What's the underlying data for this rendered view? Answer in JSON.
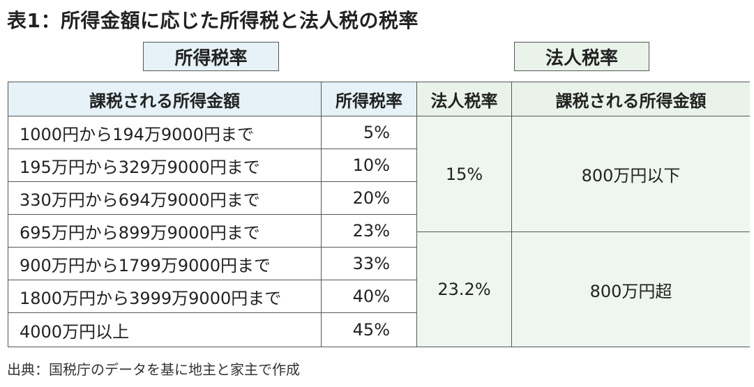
{
  "title": "表1：所得金額に応じた所得税と法人税の税率",
  "labels": {
    "income": "所得税率",
    "corporate": "法人税率"
  },
  "headers": {
    "income_amount": "課税される所得金額",
    "income_rate": "所得税率",
    "corporate_rate": "法人税率",
    "corporate_amount": "課税される所得金額"
  },
  "income_rows": [
    {
      "range": "1000円から194万9000円まで",
      "rate": "5%"
    },
    {
      "range": "195万円から329万9000円まで",
      "rate": "10%"
    },
    {
      "range": "330万円から694万9000円まで",
      "rate": "20%"
    },
    {
      "range": "695万円から899万9000円まで",
      "rate": "23%"
    },
    {
      "range": "900万円から1799万9000円まで",
      "rate": "33%"
    },
    {
      "range": "1800万円から3999万9000円まで",
      "rate": "40%"
    },
    {
      "range": "4000万円以上",
      "rate": "45%"
    }
  ],
  "corporate_rows": [
    {
      "rate": "15%",
      "amount": "800万円以下"
    },
    {
      "rate": "23.2%",
      "amount": "800万円超"
    }
  ],
  "source": "出典：国税庁のデータを基に地主と家主で作成"
}
